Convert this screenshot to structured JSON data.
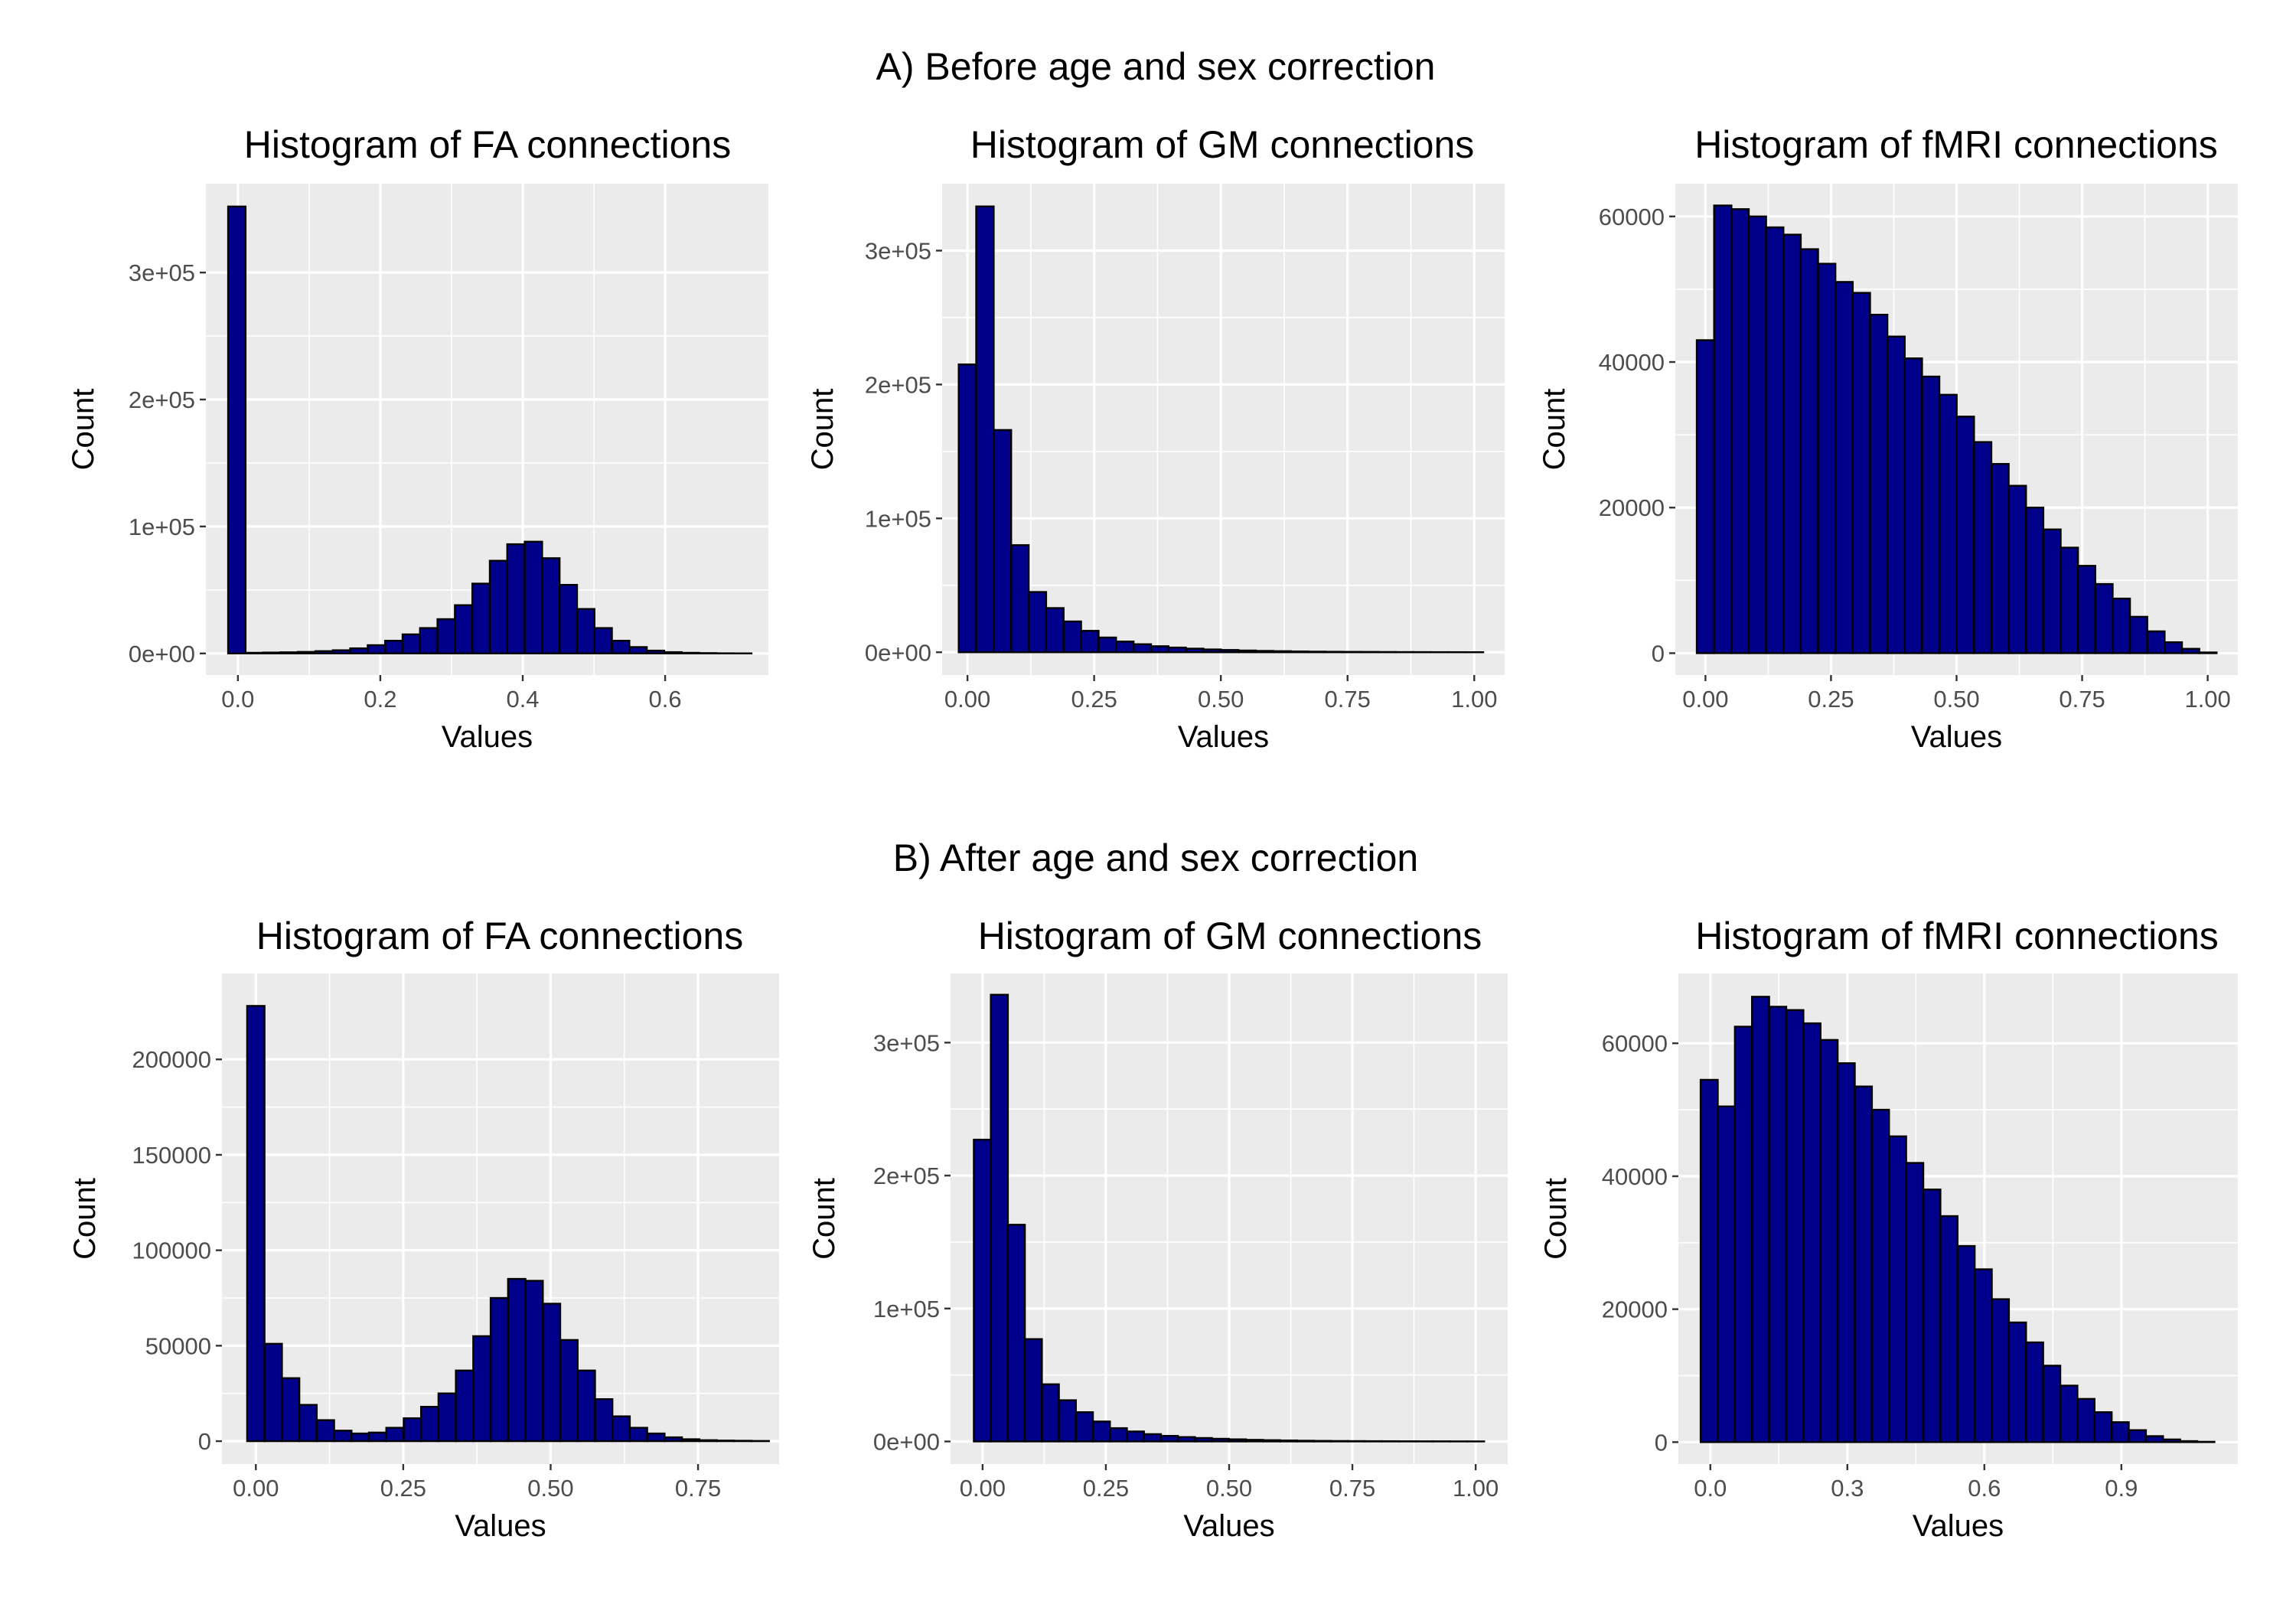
{
  "sections": [
    {
      "title": "A) Before age and sex correction"
    },
    {
      "title": "B) After age and sex correction"
    }
  ],
  "chart_data": [
    {
      "type": "bar",
      "section": "A) Before age and sex correction",
      "title": "Histogram of FA connections",
      "xlabel": "Values",
      "ylabel": "Count",
      "xlim": [
        -0.045,
        0.745
      ],
      "ylim": [
        -17000,
        370000
      ],
      "x_ticks": [
        0.0,
        0.2,
        0.4,
        0.6
      ],
      "x_tick_labels": [
        "0.0",
        "0.2",
        "0.4",
        "0.6"
      ],
      "y_ticks": [
        0,
        100000,
        200000,
        300000
      ],
      "y_tick_labels": [
        "0e+00",
        "1e+05",
        "2e+05",
        "3e+05"
      ],
      "bin_width": 0.0245,
      "bin_centers": [
        -0.0015,
        0.023,
        0.0475,
        0.072,
        0.0965,
        0.121,
        0.1455,
        0.17,
        0.1945,
        0.219,
        0.2435,
        0.268,
        0.2925,
        0.317,
        0.3415,
        0.366,
        0.3905,
        0.415,
        0.4395,
        0.464,
        0.4885,
        0.513,
        0.5375,
        0.562,
        0.5865,
        0.611,
        0.6355,
        0.66,
        0.6845,
        0.709
      ],
      "counts": [
        352000,
        500,
        700,
        900,
        1200,
        1800,
        2500,
        4000,
        6500,
        10000,
        15000,
        20000,
        27000,
        38000,
        55000,
        73000,
        86000,
        88000,
        75000,
        54000,
        35000,
        20000,
        10000,
        5000,
        2200,
        1000,
        500,
        250,
        100,
        50
      ],
      "fill": "#00008b",
      "stroke": "#000000"
    },
    {
      "type": "bar",
      "section": "A) Before age and sex correction",
      "title": "Histogram of GM connections",
      "xlabel": "Values",
      "ylabel": "Count",
      "xlim": [
        -0.05,
        1.06
      ],
      "ylim": [
        -17000,
        350000
      ],
      "x_ticks": [
        0.0,
        0.25,
        0.5,
        0.75,
        1.0
      ],
      "x_tick_labels": [
        "0.00",
        "0.25",
        "0.50",
        "0.75",
        "1.00"
      ],
      "y_ticks": [
        0,
        100000,
        200000,
        300000
      ],
      "y_tick_labels": [
        "0e+00",
        "1e+05",
        "2e+05",
        "3e+05"
      ],
      "bin_width": 0.0345,
      "bin_centers": [
        0.0,
        0.0345,
        0.069,
        0.1035,
        0.138,
        0.1725,
        0.207,
        0.2415,
        0.276,
        0.3105,
        0.345,
        0.3795,
        0.414,
        0.4485,
        0.483,
        0.5175,
        0.552,
        0.5865,
        0.621,
        0.6555,
        0.69,
        0.7245,
        0.759,
        0.7935,
        0.828,
        0.8625,
        0.897,
        0.9315,
        0.966,
        1.0005
      ],
      "counts": [
        215000,
        333000,
        166000,
        80000,
        45000,
        33000,
        23000,
        16000,
        11000,
        8000,
        6000,
        4500,
        3500,
        2700,
        2100,
        1700,
        1300,
        1000,
        800,
        600,
        450,
        350,
        300,
        250,
        200,
        150,
        120,
        100,
        80,
        60
      ],
      "fill": "#00008b",
      "stroke": "#000000"
    },
    {
      "type": "bar",
      "section": "A) Before age and sex correction",
      "title": "Histogram of fMRI connections",
      "xlabel": "Values",
      "ylabel": "Count",
      "xlim": [
        -0.06,
        1.06
      ],
      "ylim": [
        -3000,
        64500
      ],
      "x_ticks": [
        0.0,
        0.25,
        0.5,
        0.75,
        1.0
      ],
      "x_tick_labels": [
        "0.00",
        "0.25",
        "0.50",
        "0.75",
        "1.00"
      ],
      "y_ticks": [
        0,
        20000,
        40000,
        60000
      ],
      "y_tick_labels": [
        "0",
        "20000",
        "40000",
        "60000"
      ],
      "bin_width": 0.0345,
      "bin_centers": [
        0.0,
        0.0345,
        0.069,
        0.1035,
        0.138,
        0.1725,
        0.207,
        0.2415,
        0.276,
        0.3105,
        0.345,
        0.3795,
        0.414,
        0.4485,
        0.483,
        0.5175,
        0.552,
        0.5865,
        0.621,
        0.6555,
        0.69,
        0.7245,
        0.759,
        0.7935,
        0.828,
        0.8625,
        0.897,
        0.9315,
        0.966,
        1.0005
      ],
      "counts": [
        43000,
        61500,
        61000,
        60000,
        58500,
        57500,
        55500,
        53500,
        51000,
        49500,
        46500,
        43500,
        40500,
        38000,
        35500,
        32500,
        29000,
        26000,
        23000,
        20000,
        17000,
        14500,
        12000,
        9500,
        7500,
        5000,
        3000,
        1500,
        600,
        100
      ],
      "fill": "#00008b",
      "stroke": "#000000"
    },
    {
      "type": "bar",
      "section": "B) After age and sex correction",
      "title": "Histogram of FA connections",
      "xlabel": "Values",
      "ylabel": "Count",
      "xlim": [
        -0.0575,
        0.8875
      ],
      "ylim": [
        -12000,
        245000
      ],
      "x_ticks": [
        0.0,
        0.25,
        0.5,
        0.75
      ],
      "x_tick_labels": [
        "0.00",
        "0.25",
        "0.50",
        "0.75"
      ],
      "y_ticks": [
        0,
        50000,
        100000,
        150000,
        200000
      ],
      "y_tick_labels": [
        "0",
        "50000",
        "100000",
        "150000",
        "200000"
      ],
      "bin_width": 0.0295,
      "bin_centers": [
        0.0,
        0.0295,
        0.059,
        0.0885,
        0.118,
        0.1475,
        0.177,
        0.2065,
        0.236,
        0.2655,
        0.295,
        0.3245,
        0.354,
        0.3835,
        0.413,
        0.4425,
        0.472,
        0.5015,
        0.531,
        0.5605,
        0.59,
        0.6195,
        0.649,
        0.6785,
        0.708,
        0.7375,
        0.767,
        0.7965,
        0.826,
        0.8555
      ],
      "counts": [
        228000,
        51000,
        33000,
        19000,
        11000,
        5500,
        4000,
        4500,
        7000,
        12000,
        18000,
        25000,
        37000,
        55000,
        75000,
        85000,
        84000,
        72000,
        53000,
        37000,
        22000,
        13000,
        7000,
        4000,
        2000,
        1000,
        500,
        300,
        200,
        100
      ],
      "fill": "#00008b",
      "stroke": "#000000"
    },
    {
      "type": "bar",
      "section": "B) After age and sex correction",
      "title": "Histogram of GM connections",
      "xlabel": "Values",
      "ylabel": "Count",
      "xlim": [
        -0.065,
        1.065
      ],
      "ylim": [
        -17000,
        352000
      ],
      "x_ticks": [
        0.0,
        0.25,
        0.5,
        0.75,
        1.0
      ],
      "x_tick_labels": [
        "0.00",
        "0.25",
        "0.50",
        "0.75",
        "1.00"
      ],
      "y_ticks": [
        0,
        100000,
        200000,
        300000
      ],
      "y_tick_labels": [
        "0e+00",
        "1e+05",
        "2e+05",
        "3e+05"
      ],
      "bin_width": 0.0345,
      "bin_centers": [
        -0.0005,
        0.034,
        0.0685,
        0.103,
        0.1375,
        0.172,
        0.2065,
        0.241,
        0.2755,
        0.31,
        0.3445,
        0.379,
        0.4135,
        0.448,
        0.4825,
        0.517,
        0.5515,
        0.586,
        0.6205,
        0.655,
        0.6895,
        0.724,
        0.7585,
        0.793,
        0.8275,
        0.862,
        0.8965,
        0.931,
        0.9655,
        1.0
      ],
      "counts": [
        227000,
        336000,
        163000,
        77000,
        43000,
        31000,
        22000,
        15000,
        10000,
        7500,
        5500,
        4200,
        3300,
        2600,
        2000,
        1600,
        1200,
        950,
        750,
        550,
        420,
        330,
        270,
        220,
        180,
        140,
        110,
        90,
        70,
        50
      ],
      "fill": "#00008b",
      "stroke": "#000000"
    },
    {
      "type": "bar",
      "section": "B) After age and sex correction",
      "title": "Histogram of fMRI connections",
      "xlabel": "Values",
      "ylabel": "Count",
      "xlim": [
        -0.07,
        1.155
      ],
      "ylim": [
        -3300,
        70500
      ],
      "x_ticks": [
        0.0,
        0.3,
        0.6,
        0.9
      ],
      "x_tick_labels": [
        "0.0",
        "0.3",
        "0.6",
        "0.9"
      ],
      "y_ticks": [
        0,
        20000,
        40000,
        60000
      ],
      "y_tick_labels": [
        "0",
        "20000",
        "40000",
        "60000"
      ],
      "bin_width": 0.0375,
      "bin_centers": [
        -0.0025,
        0.035,
        0.0725,
        0.11,
        0.1475,
        0.185,
        0.2225,
        0.26,
        0.2975,
        0.335,
        0.3725,
        0.41,
        0.4475,
        0.485,
        0.5225,
        0.56,
        0.5975,
        0.635,
        0.6725,
        0.71,
        0.7475,
        0.785,
        0.8225,
        0.86,
        0.8975,
        0.935,
        0.9725,
        1.01,
        1.0475,
        1.085
      ],
      "counts": [
        54500,
        50500,
        62500,
        67000,
        65500,
        65000,
        63000,
        60500,
        57000,
        53500,
        50000,
        46000,
        42000,
        38000,
        34000,
        29500,
        26000,
        21500,
        18000,
        15000,
        11500,
        8500,
        6500,
        4500,
        3000,
        1800,
        900,
        400,
        150,
        50
      ],
      "fill": "#00008b",
      "stroke": "#000000"
    }
  ]
}
